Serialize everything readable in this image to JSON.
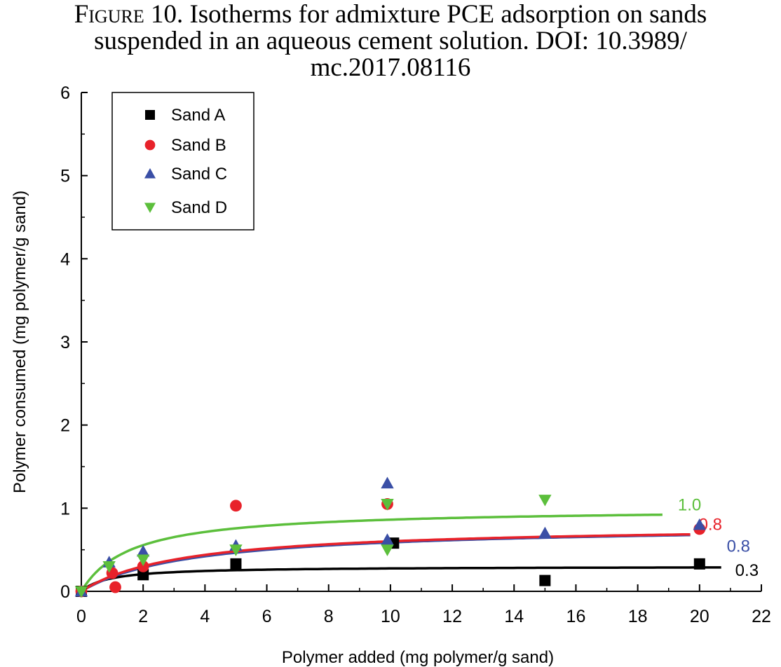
{
  "caption": {
    "label": "Figure 10.",
    "line1": "Isotherms for admixture PCE adsorption on sands",
    "line2": "suspended in an aqueous cement solution. DOI: 10.3989/",
    "line3": "mc.2017.08116"
  },
  "colors": {
    "sand_a": "#000000",
    "sand_b": "#e8222a",
    "sand_c": "#3a4fa6",
    "sand_d": "#5cbf3c"
  },
  "chart_data": {
    "type": "scatter",
    "xlabel": "Polymer added (mg polymer/g sand)",
    "ylabel": "Polymer consumed (mg polymer/g sand)",
    "xlim": [
      0,
      22
    ],
    "ylim": [
      0,
      6
    ],
    "xticks": [
      0,
      2,
      4,
      6,
      8,
      10,
      12,
      14,
      16,
      18,
      20,
      22
    ],
    "yticks": [
      0,
      1,
      2,
      3,
      4,
      5,
      6
    ],
    "grid": false,
    "legend_position": "top-left",
    "series": [
      {
        "name": "Sand A",
        "marker": "square",
        "color": "#000000",
        "points": [
          [
            0,
            0
          ],
          [
            2,
            0.2
          ],
          [
            5,
            0.33
          ],
          [
            10.1,
            0.58
          ],
          [
            15,
            0.13
          ],
          [
            20,
            0.33
          ]
        ],
        "fit_curve_label": "0.3",
        "fit_max": 0.3,
        "fit_xmax": 20.7
      },
      {
        "name": "Sand B",
        "marker": "circle",
        "color": "#e8222a",
        "points": [
          [
            0,
            0
          ],
          [
            1,
            0.22
          ],
          [
            1.1,
            0.05
          ],
          [
            2,
            0.3
          ],
          [
            5,
            1.03
          ],
          [
            9.9,
            1.05
          ],
          [
            20,
            0.75
          ]
        ],
        "fit_curve_label": "0.8",
        "fit_max": 0.8,
        "fit_xmax": 19.7
      },
      {
        "name": "Sand C",
        "marker": "triangle-up",
        "color": "#3a4fa6",
        "points": [
          [
            0,
            0
          ],
          [
            0.9,
            0.35
          ],
          [
            2,
            0.48
          ],
          [
            5,
            0.55
          ],
          [
            9.9,
            1.3
          ],
          [
            9.9,
            0.62
          ],
          [
            15,
            0.7
          ],
          [
            20,
            0.8
          ]
        ],
        "fit_curve_label": "0.8",
        "fit_max": 0.8,
        "fit_xmax": 19.7
      },
      {
        "name": "Sand D",
        "marker": "triangle-down",
        "color": "#5cbf3c",
        "points": [
          [
            0,
            0
          ],
          [
            0.9,
            0.3
          ],
          [
            2,
            0.38
          ],
          [
            5,
            0.5
          ],
          [
            9.9,
            1.05
          ],
          [
            9.9,
            0.5
          ],
          [
            15,
            1.1
          ]
        ],
        "fit_curve_label": "1.0",
        "fit_max": 1.0,
        "fit_xmax": 18.8
      }
    ]
  }
}
